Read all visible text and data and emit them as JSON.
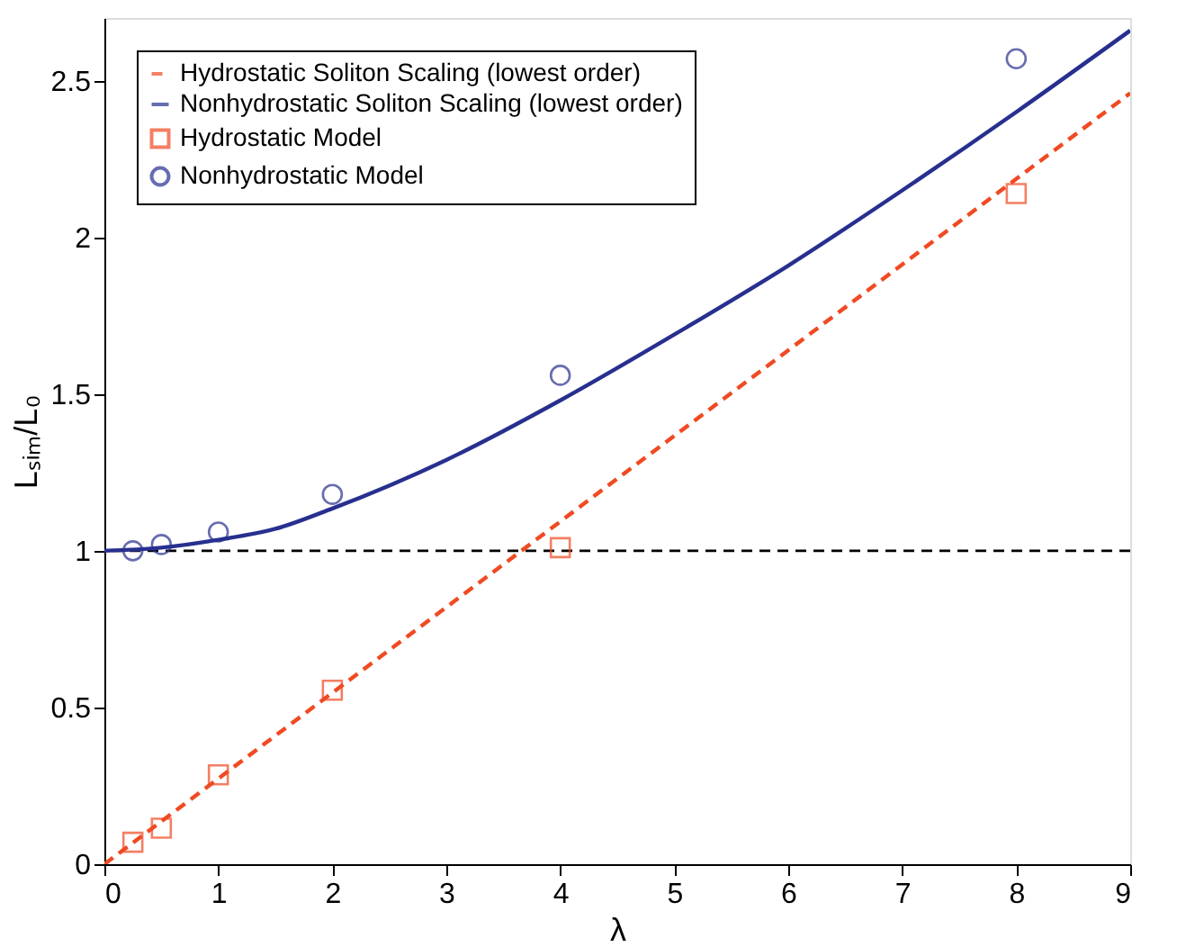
{
  "chart_data": {
    "type": "line",
    "xlabel": "λ",
    "ylabel": "Lₛᵢₘ/L₀",
    "xlim": [
      0,
      9
    ],
    "ylim": [
      0,
      2.7
    ],
    "xticks": [
      0,
      1,
      2,
      3,
      4,
      5,
      6,
      7,
      8,
      9
    ],
    "yticks": [
      0,
      0.5,
      1,
      1.5,
      2,
      2.5
    ],
    "grid": false,
    "legend": "top left",
    "ref_lines": [
      {
        "axis": "y",
        "value": 1,
        "color": "#000000",
        "line_style": "dashed"
      }
    ],
    "series": [
      {
        "name": "Hydrostatic Soliton Scaling (lowest order)",
        "line_style": "dashed",
        "color": "#f04a23",
        "x": [
          0,
          9
        ],
        "values": [
          0,
          2.46
        ]
      },
      {
        "name": "Nonhydrostatic Soliton Scaling (lowest order)",
        "line_style": "solid",
        "color": "#27308f",
        "x": [
          0,
          0.5,
          1,
          1.5,
          2,
          3,
          4,
          5,
          6,
          7,
          8,
          9
        ],
        "values": [
          1.0,
          1.01,
          1.035,
          1.07,
          1.135,
          1.29,
          1.48,
          1.69,
          1.91,
          2.15,
          2.4,
          2.66
        ]
      },
      {
        "name": "Hydrostatic Model",
        "type": "scatter",
        "marker": "square",
        "color": "#f04a23",
        "x": [
          0.25,
          0.5,
          1,
          2,
          4,
          8
        ],
        "values": [
          0.07,
          0.115,
          0.285,
          0.555,
          1.01,
          2.14
        ]
      },
      {
        "name": "Nonhydrostatic Model",
        "type": "scatter",
        "marker": "circle",
        "color": "#27308f",
        "x": [
          0.25,
          0.5,
          1,
          2,
          4,
          8
        ],
        "values": [
          1.0,
          1.02,
          1.06,
          1.18,
          1.56,
          2.57
        ]
      }
    ]
  }
}
